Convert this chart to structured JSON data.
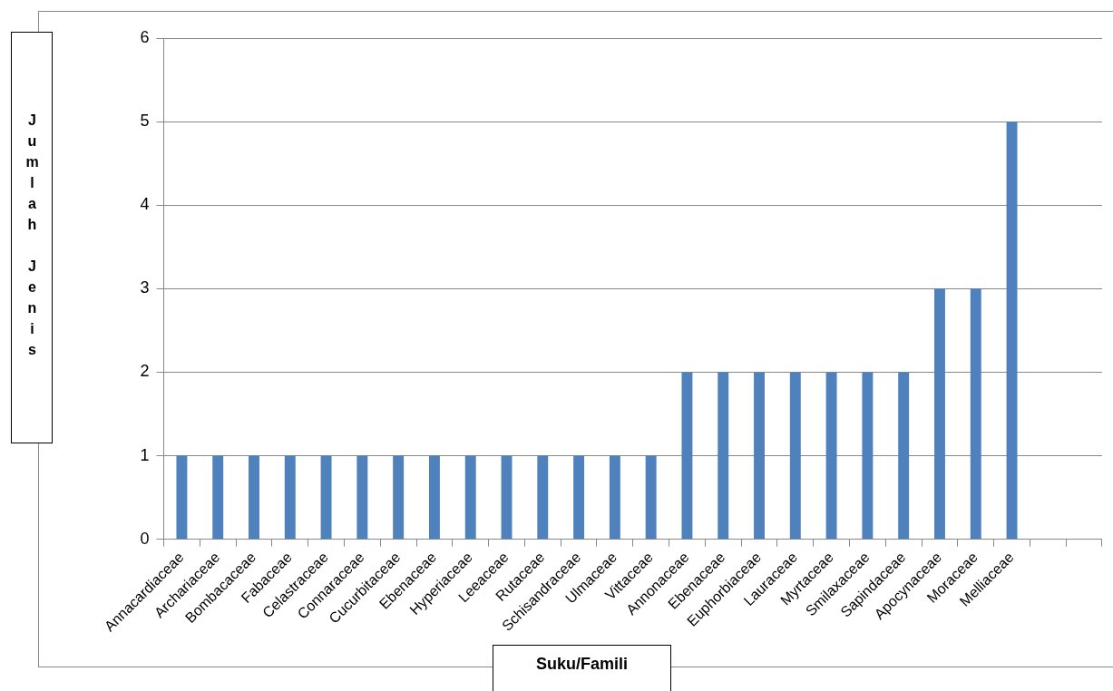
{
  "chart_data": {
    "type": "bar",
    "xlabel": "Suku/Famili",
    "ylabel": "Jumlah Jenis",
    "categories": [
      "Annacardiaceae",
      "Archariaceae",
      "Bombacaceae",
      "Fabaceae",
      "Celastraceae",
      "Connaraceae",
      "Cucurbitaceae",
      "Ebenaceae",
      "Hyperiaceae",
      "Leeaceae",
      "Rutaceae",
      "Schisandraceae",
      "Ulmaceae",
      "Vittaceae",
      "Annonaceae",
      "Ebenaceae",
      "Euphorbiaceae",
      "Lauraceae",
      "Myrtaceae",
      "Smilaxaceae",
      "Sapindaceae",
      "Apocynaceae",
      "Moraceae",
      "Melliaceae",
      null,
      null
    ],
    "values": [
      1,
      1,
      1,
      1,
      1,
      1,
      1,
      1,
      1,
      1,
      1,
      1,
      1,
      1,
      2,
      2,
      2,
      2,
      2,
      2,
      2,
      3,
      3,
      5,
      null,
      null
    ],
    "color": "#4f81bd",
    "ylim": [
      0,
      6
    ],
    "yticks": [
      0,
      1,
      2,
      3,
      4,
      5,
      6
    ],
    "grid": "y",
    "legend": false
  }
}
